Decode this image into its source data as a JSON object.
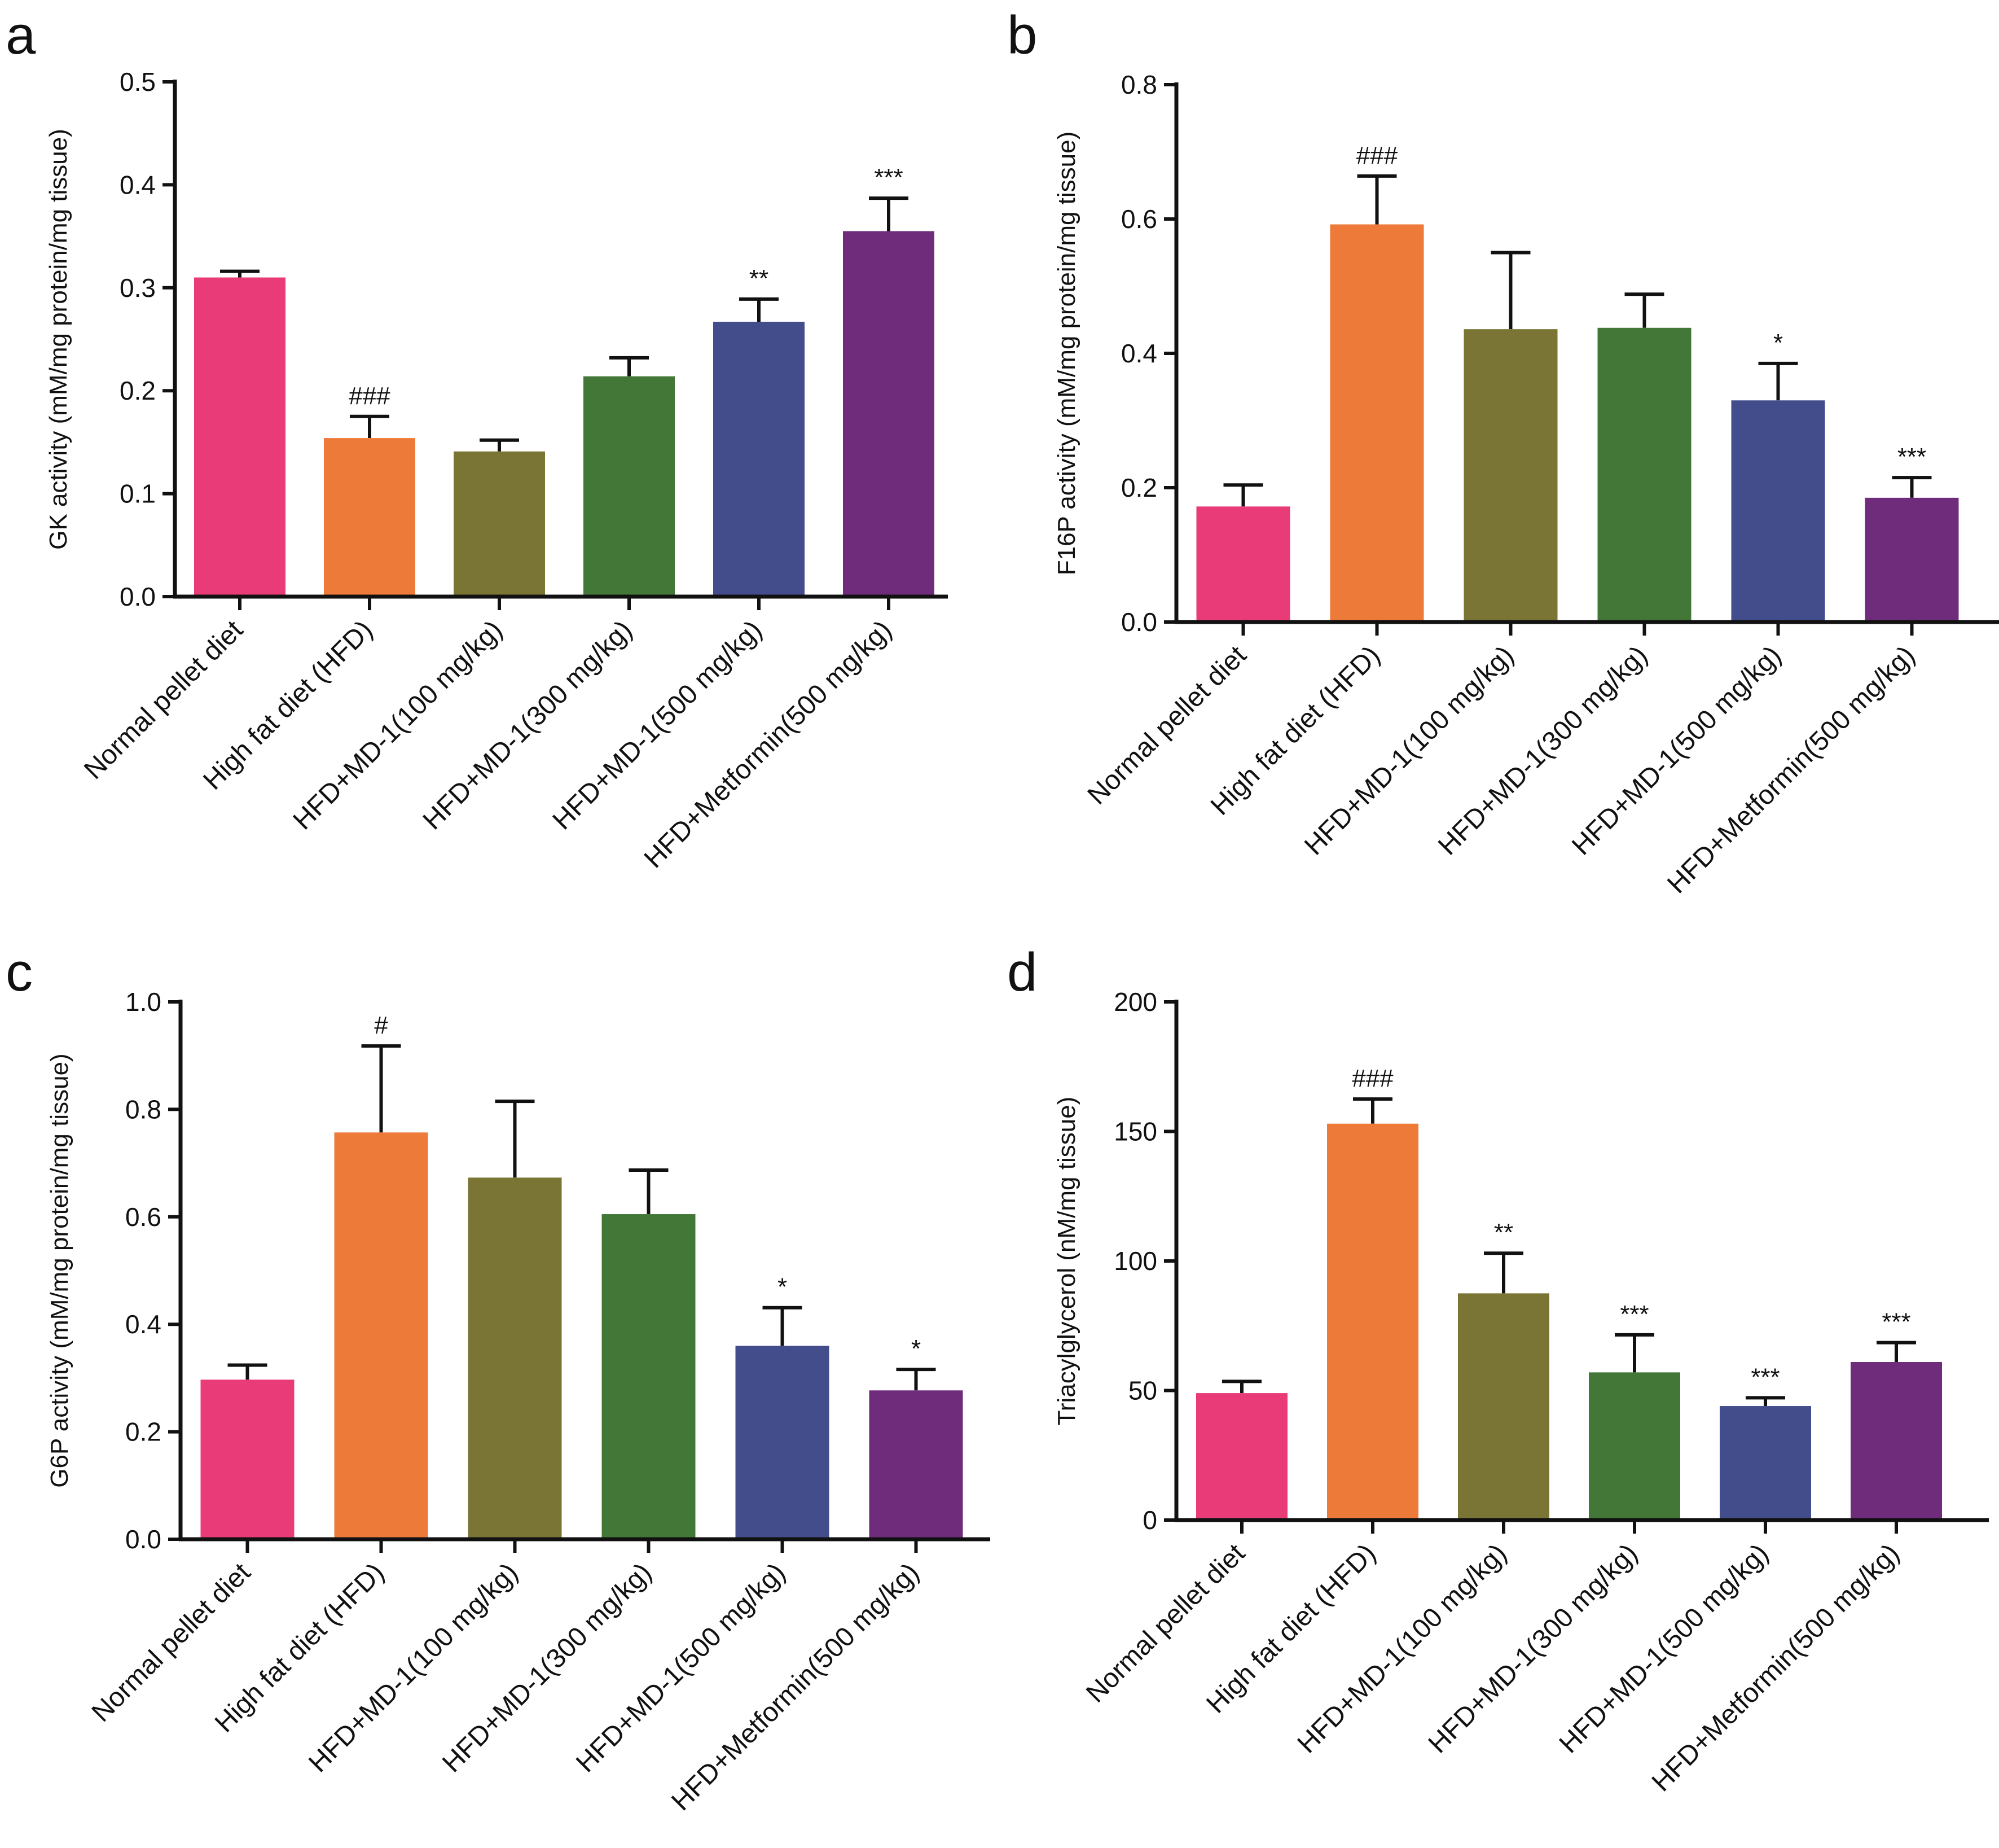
{
  "colors": {
    "series": [
      "#e93b78",
      "#ee7a3a",
      "#7a7535",
      "#427738",
      "#434d8c",
      "#6f2c7b"
    ],
    "axis": "#111111"
  },
  "chart_data": [
    {
      "panel": "a",
      "type": "bar",
      "ylabel": "GK activity (mM/mg protein/mg tissue)",
      "ylim": [
        0,
        0.5
      ],
      "yticks": [
        "0.0",
        "0.1",
        "0.2",
        "0.3",
        "0.4",
        "0.5"
      ],
      "categories": [
        "Normal pellet diet",
        "High fat diet (HFD)",
        "HFD+MD-1(100 mg/kg)",
        "HFD+MD-1(300 mg/kg)",
        "HFD+MD-1(500 mg/kg)",
        "HFD+Metformin(500 mg/kg)"
      ],
      "values": [
        0.31,
        0.154,
        0.141,
        0.214,
        0.267,
        0.355
      ],
      "errors": [
        0.006,
        0.021,
        0.011,
        0.018,
        0.022,
        0.032
      ],
      "annotations": [
        "",
        "###",
        "",
        "",
        "**",
        "***"
      ]
    },
    {
      "panel": "b",
      "type": "bar",
      "ylabel": "F16P activity (mM/mg protein/mg tissue)",
      "ylim": [
        0,
        0.8
      ],
      "yticks": [
        "0.0",
        "0.2",
        "0.4",
        "0.6",
        "0.8"
      ],
      "categories": [
        "Normal pellet diet",
        "High fat diet (HFD)",
        "HFD+MD-1(100 mg/kg)",
        "HFD+MD-1(300 mg/kg)",
        "HFD+MD-1(500 mg/kg)",
        "HFD+Metformin(500 mg/kg)"
      ],
      "values": [
        0.172,
        0.592,
        0.436,
        0.438,
        0.33,
        0.185
      ],
      "errors": [
        0.032,
        0.072,
        0.114,
        0.05,
        0.055,
        0.03
      ],
      "annotations": [
        "",
        "###",
        "",
        "",
        "*",
        "***"
      ]
    },
    {
      "panel": "c",
      "type": "bar",
      "ylabel": "G6P activity (mM/mg protein/mg tissue)",
      "ylim": [
        0,
        1.0
      ],
      "yticks": [
        "0.0",
        "0.2",
        "0.4",
        "0.6",
        "0.8",
        "1.0"
      ],
      "categories": [
        "Normal pellet diet",
        "High fat diet (HFD)",
        "HFD+MD-1(100 mg/kg)",
        "HFD+MD-1(300 mg/kg)",
        "HFD+MD-1(500 mg/kg)",
        "HFD+Metformin(500 mg/kg)"
      ],
      "values": [
        0.297,
        0.757,
        0.673,
        0.605,
        0.36,
        0.277
      ],
      "errors": [
        0.027,
        0.161,
        0.142,
        0.082,
        0.071,
        0.039
      ],
      "annotations": [
        "",
        "#",
        "",
        "",
        "*",
        "*"
      ]
    },
    {
      "panel": "d",
      "type": "bar",
      "ylabel": "Triacylglycerol (nM/mg tissue)",
      "ylim": [
        0,
        200
      ],
      "yticks": [
        "0",
        "50",
        "100",
        "150",
        "200"
      ],
      "categories": [
        "Normal pellet diet",
        "High fat diet (HFD)",
        "HFD+MD-1(100 mg/kg)",
        "HFD+MD-1(300 mg/kg)",
        "HFD+MD-1(500 mg/kg)",
        "HFD+Metformin(500 mg/kg)"
      ],
      "values": [
        49,
        153,
        87.5,
        57,
        44,
        61
      ],
      "errors": [
        4.5,
        9.5,
        15.5,
        14.5,
        3.2,
        7.5
      ],
      "annotations": [
        "",
        "###",
        "**",
        "***",
        "***",
        "***"
      ]
    }
  ]
}
